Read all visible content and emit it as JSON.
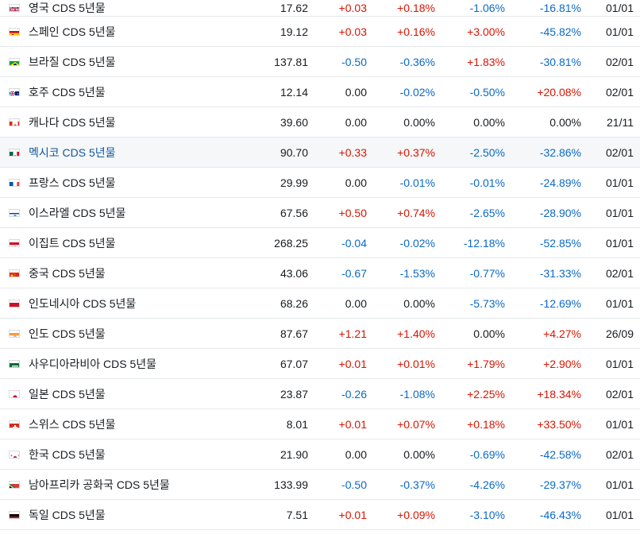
{
  "table": {
    "rows": [
      {
        "name": "영국 CDS 5년물",
        "flag": "uk",
        "price": "17.62",
        "change": "+0.03",
        "change_pct": "+0.18%",
        "week": "-1.06%",
        "ytd": "-16.81%",
        "date": "01/01",
        "first": true
      },
      {
        "name": "스페인 CDS 5년물",
        "flag": "spain",
        "price": "19.12",
        "change": "+0.03",
        "change_pct": "+0.16%",
        "week": "+3.00%",
        "ytd": "-45.82%",
        "date": "01/01"
      },
      {
        "name": "브라질 CDS 5년물",
        "flag": "brazil",
        "price": "137.81",
        "change": "-0.50",
        "change_pct": "-0.36%",
        "week": "+1.83%",
        "ytd": "-30.81%",
        "date": "02/01"
      },
      {
        "name": "호주 CDS 5년물",
        "flag": "australia",
        "price": "12.14",
        "change": "0.00",
        "change_pct": "-0.02%",
        "week": "-0.50%",
        "ytd": "+20.08%",
        "date": "02/01"
      },
      {
        "name": "캐나다 CDS 5년물",
        "flag": "canada",
        "price": "39.60",
        "change": "0.00",
        "change_pct": "0.00%",
        "week": "0.00%",
        "ytd": "0.00%",
        "date": "21/11"
      },
      {
        "name": "멕시코 CDS 5년물",
        "flag": "mexico",
        "price": "90.70",
        "change": "+0.33",
        "change_pct": "+0.37%",
        "week": "-2.50%",
        "ytd": "-32.86%",
        "date": "02/01",
        "highlight": true
      },
      {
        "name": "프랑스 CDS 5년물",
        "flag": "france",
        "price": "29.99",
        "change": "0.00",
        "change_pct": "-0.01%",
        "week": "-0.01%",
        "ytd": "-24.89%",
        "date": "01/01"
      },
      {
        "name": "이스라엘 CDS 5년물",
        "flag": "israel",
        "price": "67.56",
        "change": "+0.50",
        "change_pct": "+0.74%",
        "week": "-2.65%",
        "ytd": "-28.90%",
        "date": "01/01"
      },
      {
        "name": "이집트 CDS 5년물",
        "flag": "egypt",
        "price": "268.25",
        "change": "-0.04",
        "change_pct": "-0.02%",
        "week": "-12.18%",
        "ytd": "-52.85%",
        "date": "01/01"
      },
      {
        "name": "중국 CDS 5년물",
        "flag": "china",
        "price": "43.06",
        "change": "-0.67",
        "change_pct": "-1.53%",
        "week": "-0.77%",
        "ytd": "-31.33%",
        "date": "02/01"
      },
      {
        "name": "인도네시아 CDS 5년물",
        "flag": "indonesia",
        "price": "68.26",
        "change": "0.00",
        "change_pct": "0.00%",
        "week": "-5.73%",
        "ytd": "-12.69%",
        "date": "01/01"
      },
      {
        "name": "인도 CDS 5년물",
        "flag": "india",
        "price": "87.67",
        "change": "+1.21",
        "change_pct": "+1.40%",
        "week": "0.00%",
        "ytd": "+4.27%",
        "date": "26/09"
      },
      {
        "name": "사우디아라비아 CDS 5년물",
        "flag": "saudi",
        "price": "67.07",
        "change": "+0.01",
        "change_pct": "+0.01%",
        "week": "+1.79%",
        "ytd": "+2.90%",
        "date": "01/01"
      },
      {
        "name": "일본 CDS 5년물",
        "flag": "japan",
        "price": "23.87",
        "change": "-0.26",
        "change_pct": "-1.08%",
        "week": "+2.25%",
        "ytd": "+18.34%",
        "date": "02/01"
      },
      {
        "name": "스위스 CDS 5년물",
        "flag": "switzerland",
        "price": "8.01",
        "change": "+0.01",
        "change_pct": "+0.07%",
        "week": "+0.18%",
        "ytd": "+33.50%",
        "date": "01/01"
      },
      {
        "name": "한국 CDS 5년물",
        "flag": "korea",
        "price": "21.90",
        "change": "0.00",
        "change_pct": "0.00%",
        "week": "-0.69%",
        "ytd": "-42.58%",
        "date": "02/01"
      },
      {
        "name": "남아프리카 공화국 CDS 5년물",
        "flag": "southafrica",
        "price": "133.99",
        "change": "-0.50",
        "change_pct": "-0.37%",
        "week": "-4.26%",
        "ytd": "-29.37%",
        "date": "01/01"
      },
      {
        "name": "독일 CDS 5년물",
        "flag": "germany",
        "price": "7.51",
        "change": "+0.01",
        "change_pct": "+0.09%",
        "week": "-3.10%",
        "ytd": "-46.43%",
        "date": "01/01"
      }
    ]
  },
  "colors": {
    "positive": "#d91400",
    "negative": "#0b69c7",
    "neutral": "#181c21",
    "link_active": "#1256a0"
  }
}
